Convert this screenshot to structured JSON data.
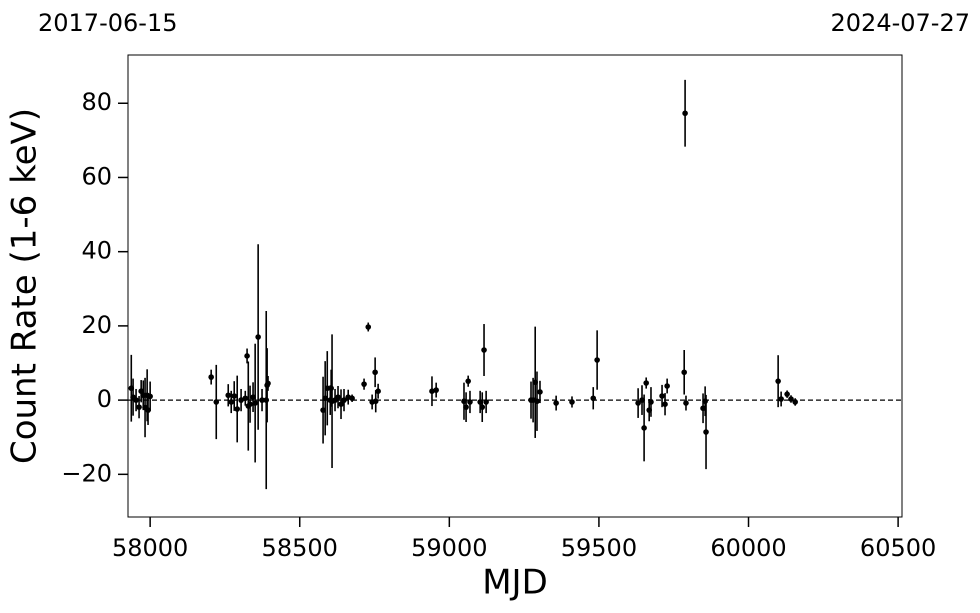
{
  "chart_data": {
    "type": "errorbar",
    "xlabel": "MJD",
    "ylabel": "Count Rate (1-6 keV)",
    "date_range": [
      "2017-06-15",
      "2024-07-27"
    ],
    "color": "#000000",
    "hline": 0,
    "xlim": [
      57926,
      60513
    ],
    "ylim": [
      -31.5,
      93
    ],
    "xticks": [
      58000,
      58500,
      59000,
      59500,
      60000,
      60500
    ],
    "yticks": [
      {
        "value": -20,
        "label": "−20"
      },
      0,
      20,
      40,
      60,
      80
    ],
    "x": [
      57937,
      57943,
      57953,
      57963,
      57970,
      57977,
      57983,
      57990,
      57993,
      58000,
      58204,
      58221,
      58261,
      58271,
      58281,
      58291,
      58304,
      58318,
      58324,
      58328,
      58334,
      58344,
      58351,
      58361,
      58374,
      58388,
      58391,
      58394,
      58578,
      58585,
      58592,
      58602,
      58605,
      58608,
      58618,
      58628,
      58638,
      58648,
      58662,
      58675,
      58715,
      58729,
      58742,
      58752,
      58754,
      58762,
      58942,
      58956,
      59049,
      59056,
      59063,
      59069,
      59103,
      59110,
      59116,
      59123,
      59273,
      59280,
      59287,
      59293,
      59303,
      59357,
      59410,
      59481,
      59494,
      59631,
      59644,
      59651,
      59658,
      59668,
      59674,
      59711,
      59721,
      59728,
      59785,
      59788,
      59791,
      59848,
      59855,
      59858,
      60099,
      60109,
      60129,
      60142,
      60156
    ],
    "values": [
      3.2,
      0.8,
      0,
      -1.9,
      2.4,
      1.3,
      -2,
      1.3,
      -2.7,
      1,
      6.2,
      -0.5,
      1.3,
      -0.5,
      1.1,
      -2.4,
      0,
      0.5,
      11.9,
      -1.6,
      -1.1,
      0.8,
      -0.8,
      17,
      0,
      0,
      4,
      4.5,
      -2.7,
      0.5,
      3.2,
      0,
      3.2,
      -0.3,
      0,
      0.8,
      -1.1,
      0,
      0.8,
      0.5,
      4.3,
      19.7,
      -0.5,
      7.5,
      -0.3,
      2.4,
      2.4,
      2.7,
      -0.3,
      -1.9,
      5.1,
      -0.5,
      -0.5,
      -1.9,
      13.5,
      -0.5,
      0,
      0,
      4.8,
      -0.3,
      2.2,
      -0.8,
      -0.5,
      0.5,
      10.8,
      -0.8,
      0,
      -7.5,
      4.6,
      -2.7,
      -0.5,
      1.1,
      -1.1,
      3.8,
      7.5,
      77.3,
      -0.8,
      -2.2,
      -0.3,
      -8.6,
      5.1,
      0.3,
      1.6,
      0.3,
      -0.5
    ],
    "errors": [
      9,
      5,
      3,
      3,
      3,
      4,
      8,
      7,
      4,
      4,
      2,
      10,
      3,
      3,
      4,
      9,
      3,
      2,
      2,
      12,
      5,
      4,
      16,
      25,
      3,
      24,
      10,
      2,
      9,
      10,
      10,
      4,
      5,
      18,
      3,
      3,
      4,
      3,
      2,
      1,
      1.5,
      1.2,
      2,
      4,
      3,
      2,
      4,
      2,
      5,
      4,
      1.5,
      3,
      3,
      4,
      7,
      3,
      5,
      6,
      15,
      8,
      3,
      2,
      1.5,
      3,
      8,
      4,
      4,
      9,
      1.5,
      3,
      4,
      3,
      3,
      2,
      6,
      9,
      2,
      4,
      4,
      10,
      7,
      2,
      1,
      1,
      1
    ]
  }
}
